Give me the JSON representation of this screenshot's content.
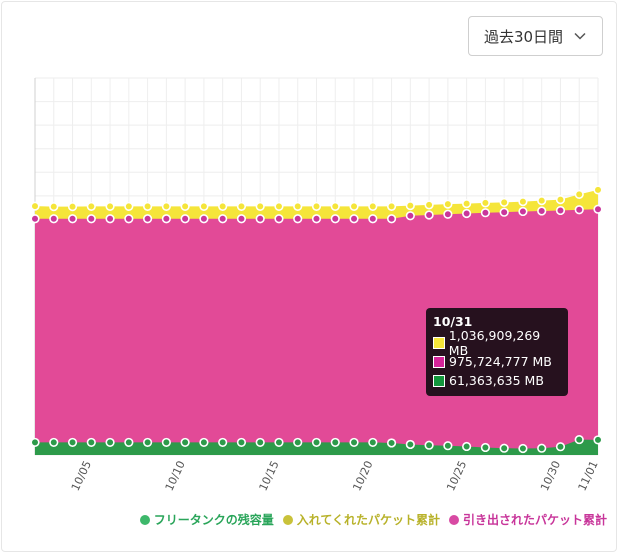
{
  "range_select": {
    "label": "過去30日間"
  },
  "chart_data": {
    "type": "area",
    "x": [
      "10/02",
      "10/03",
      "10/04",
      "10/05",
      "10/06",
      "10/07",
      "10/08",
      "10/09",
      "10/10",
      "10/11",
      "10/12",
      "10/13",
      "10/14",
      "10/15",
      "10/16",
      "10/17",
      "10/18",
      "10/19",
      "10/20",
      "10/21",
      "10/22",
      "10/23",
      "10/24",
      "10/25",
      "10/26",
      "10/27",
      "10/28",
      "10/29",
      "10/30",
      "10/31",
      "11/01"
    ],
    "x_tick_labels": [
      "10/05",
      "10/10",
      "10/15",
      "10/20",
      "10/25",
      "10/30",
      "11/01"
    ],
    "ylim": [
      0,
      1500000000
    ],
    "series": [
      {
        "name": "入れてくれたパケット累計",
        "color": "#f5e53a",
        "values": [
          990000000,
          988000000,
          988000000,
          989000000,
          989000000,
          989000000,
          989000000,
          989000000,
          989000000,
          989000000,
          989000000,
          989000000,
          989000000,
          989000000,
          989000000,
          989000000,
          989000000,
          989000000,
          989000000,
          989000000,
          992000000,
          995000000,
          998000000,
          1000000000,
          1003000000,
          1005000000,
          1008000000,
          1012000000,
          1016000000,
          1036909269,
          1055000000
        ]
      },
      {
        "name": "引き出されたパケット累計",
        "color": "#e24a97",
        "values": [
          940000000,
          940000000,
          940000000,
          940000000,
          940000000,
          940000000,
          940000000,
          940000000,
          940000000,
          940000000,
          940000000,
          940000000,
          940000000,
          940000000,
          940000000,
          940000000,
          940000000,
          940000000,
          940000000,
          940000000,
          952000000,
          955000000,
          958000000,
          961000000,
          964000000,
          966000000,
          969000000,
          971000000,
          973000000,
          975724777,
          978000000
        ]
      },
      {
        "name": "フリータンクの残容量",
        "color": "#2d9a4a",
        "values": [
          50000000,
          50000000,
          50000000,
          50000000,
          50000000,
          50000000,
          50000000,
          50000000,
          50000000,
          50000000,
          50000000,
          50000000,
          50000000,
          50000000,
          50000000,
          50000000,
          50000000,
          50000000,
          50000000,
          48000000,
          42000000,
          39000000,
          37000000,
          34000000,
          30000000,
          27000000,
          26000000,
          27000000,
          33000000,
          61363635,
          60000000
        ]
      }
    ],
    "grid": true,
    "legend": "bottom-right"
  },
  "tooltip": {
    "date": "10/31",
    "rows": [
      {
        "color": "#f5e53a",
        "text": "1,036,909,269 MB"
      },
      {
        "color": "#d6249a",
        "text": "975,724,777 MB"
      },
      {
        "color": "#13963c",
        "text": "61,363,635 MB"
      }
    ]
  },
  "legend": {
    "items": [
      {
        "name": "フリータンクの残容量",
        "dot_color": "#3db86b",
        "text_color": "#2aa55a"
      },
      {
        "name": "入れてくれたパケット累計",
        "dot_color": "#c9c23a",
        "text_color": "#b8b22a"
      },
      {
        "name": "引き出されたパケット累計",
        "dot_color": "#d84aa3",
        "text_color": "#c8359a"
      }
    ]
  }
}
